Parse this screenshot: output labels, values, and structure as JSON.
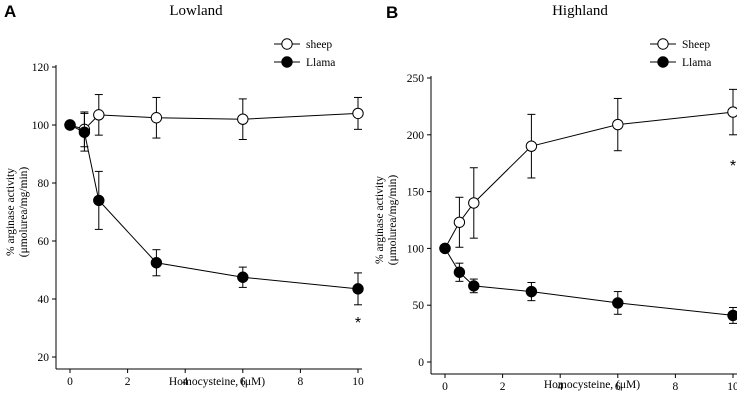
{
  "chart_data": [
    {
      "panel_letter": "A",
      "type": "line",
      "title": "Lowland",
      "xlabel": "Homocysteine, (μM)",
      "ylabel_line1": "% arginase activity",
      "ylabel_line2": "(μmolurea/mg/min)",
      "xlim": [
        0,
        10
      ],
      "ylim": [
        20,
        120
      ],
      "xticks": [
        0,
        2,
        4,
        6,
        8,
        10
      ],
      "yticks": [
        20,
        40,
        60,
        80,
        100,
        120
      ],
      "legend_position": "top-right",
      "annotation": "*",
      "annotation_at": {
        "x": 10,
        "y": 30
      },
      "series": [
        {
          "name": "sheep",
          "marker": "open-circle",
          "x": [
            0,
            0.5,
            1,
            3,
            6,
            10
          ],
          "y": [
            100,
            98.5,
            103.5,
            102.5,
            102,
            104
          ],
          "err": [
            0,
            6,
            7,
            7,
            7,
            5.5
          ]
        },
        {
          "name": "Llama",
          "marker": "filled-circle",
          "x": [
            0,
            0.5,
            1,
            3,
            6,
            10
          ],
          "y": [
            100,
            97.5,
            74,
            52.5,
            47.5,
            43.5
          ],
          "err": [
            0,
            6.5,
            10,
            4.5,
            3.5,
            5.5
          ]
        }
      ]
    },
    {
      "panel_letter": "B",
      "type": "line",
      "title": "Highland",
      "xlabel": "Homocysteine, (μM)",
      "ylabel_line1": "% arginase activity",
      "ylabel_line2": "(μmolurea/mg/min)",
      "xlim": [
        0,
        10
      ],
      "ylim": [
        0,
        250
      ],
      "xticks": [
        0,
        2,
        4,
        6,
        8,
        10
      ],
      "yticks": [
        0,
        50,
        100,
        150,
        200,
        250
      ],
      "legend_position": "top-right",
      "annotation": "*",
      "annotation_at": {
        "x": 10,
        "y": 168
      },
      "series": [
        {
          "name": "Sheep",
          "marker": "open-circle",
          "x": [
            0,
            0.5,
            1,
            3,
            6,
            10
          ],
          "y": [
            100,
            123,
            140,
            190,
            209,
            220
          ],
          "err": [
            0,
            22,
            31,
            28,
            23,
            20
          ]
        },
        {
          "name": "Llama",
          "marker": "filled-circle",
          "x": [
            0,
            0.5,
            1,
            3,
            6,
            10
          ],
          "y": [
            100,
            79,
            67,
            62,
            52,
            41
          ],
          "err": [
            0,
            8,
            6,
            8,
            10,
            7
          ]
        }
      ]
    }
  ]
}
